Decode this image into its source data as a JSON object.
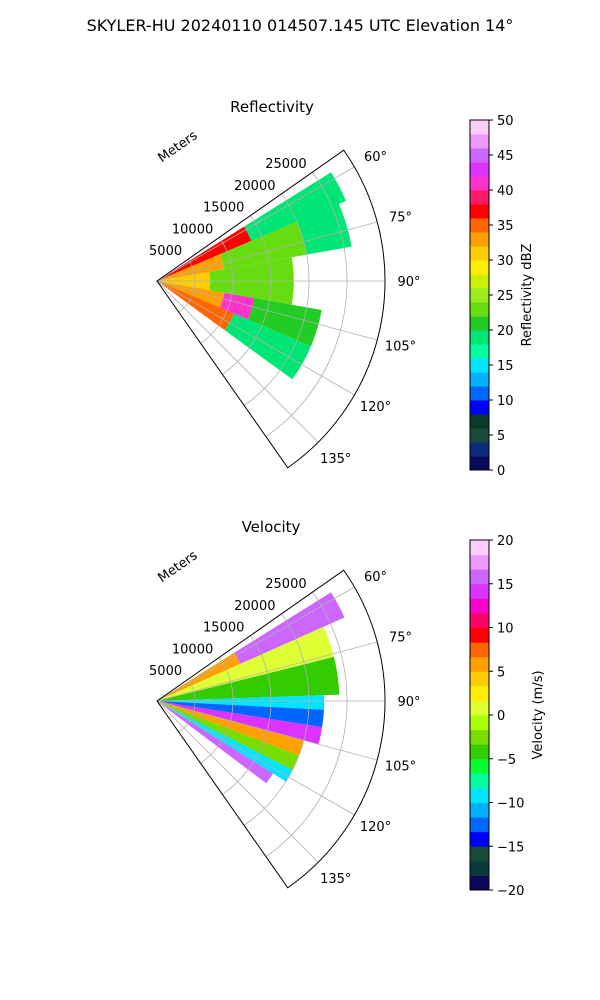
{
  "figure": {
    "suptitle": "SKYLER-HU  20240110  014507.145 UTC Elevation 14°"
  },
  "chart_data": [
    {
      "type": "heatmap",
      "projection": "polar-sector",
      "title": "Reflectivity",
      "radial_label": "Meters",
      "radial_ticks": [
        5000,
        10000,
        15000,
        20000,
        25000
      ],
      "radial_tick_labels": [
        "5000",
        "10000",
        "15000",
        "20000",
        "25000"
      ],
      "rmax": 30000,
      "angle_range_deg": [
        55,
        145
      ],
      "angle_ticks": [
        60,
        75,
        90,
        105,
        120,
        135
      ],
      "angle_tick_labels": [
        "60°",
        "75°",
        "90°",
        "105°",
        "120°",
        "135°"
      ],
      "grid": true,
      "colorbar": {
        "label": "Reflectivity dBZ",
        "range": [
          0,
          50
        ],
        "ticks": [
          0,
          5,
          10,
          15,
          20,
          25,
          30,
          35,
          40,
          45,
          50
        ],
        "tick_labels": [
          "0",
          "5",
          "10",
          "15",
          "20",
          "25",
          "30",
          "35",
          "40",
          "45",
          "50"
        ]
      },
      "sectors": [
        {
          "az": [
            58,
            67
          ],
          "r": [
            0,
            13500
          ],
          "value": 36
        },
        {
          "az": [
            58,
            67
          ],
          "r": [
            13500,
            27000
          ],
          "value": 19
        },
        {
          "az": [
            67,
            80
          ],
          "r": [
            0,
            9000
          ],
          "value": 32
        },
        {
          "az": [
            67,
            80
          ],
          "r": [
            9000,
            20000
          ],
          "value": 22
        },
        {
          "az": [
            67,
            80
          ],
          "r": [
            20000,
            26000
          ],
          "value": 18
        },
        {
          "az": [
            80,
            100
          ],
          "r": [
            0,
            7000
          ],
          "value": 30
        },
        {
          "az": [
            80,
            100
          ],
          "r": [
            7000,
            18000
          ],
          "value": 22
        },
        {
          "az": [
            100,
            113
          ],
          "r": [
            0,
            9000
          ],
          "value": 33
        },
        {
          "az": [
            100,
            113
          ],
          "r": [
            9000,
            13000
          ],
          "value": 40
        },
        {
          "az": [
            100,
            113
          ],
          "r": [
            13000,
            22000
          ],
          "value": 20
        },
        {
          "az": [
            113,
            126
          ],
          "r": [
            0,
            11000
          ],
          "value": 34
        },
        {
          "az": [
            113,
            126
          ],
          "r": [
            11000,
            22000
          ],
          "value": 19
        }
      ]
    },
    {
      "type": "heatmap",
      "projection": "polar-sector",
      "title": "Velocity",
      "radial_label": "Meters",
      "radial_ticks": [
        5000,
        10000,
        15000,
        20000,
        25000
      ],
      "radial_tick_labels": [
        "5000",
        "10000",
        "15000",
        "20000",
        "25000"
      ],
      "rmax": 30000,
      "angle_range_deg": [
        55,
        145
      ],
      "angle_ticks": [
        60,
        75,
        90,
        105,
        120,
        135
      ],
      "angle_tick_labels": [
        "60°",
        "75°",
        "90°",
        "105°",
        "120°",
        "135°"
      ],
      "grid": true,
      "colorbar": {
        "label": "Velocity (m/s)",
        "range": [
          -20,
          20
        ],
        "ticks": [
          -20,
          -15,
          -10,
          -5,
          0,
          5,
          10,
          15,
          20
        ],
        "tick_labels": [
          "−20",
          "−15",
          "−10",
          "−5",
          "0",
          "5",
          "10",
          "15",
          "20"
        ]
      },
      "sectors": [
        {
          "az": [
            58,
            66
          ],
          "r": [
            0,
            12000
          ],
          "value": 6
        },
        {
          "az": [
            58,
            66
          ],
          "r": [
            12000,
            27000
          ],
          "value": 15
        },
        {
          "az": [
            66,
            76
          ],
          "r": [
            0,
            24000
          ],
          "value": 1
        },
        {
          "az": [
            76,
            88
          ],
          "r": [
            0,
            24000
          ],
          "value": -4
        },
        {
          "az": [
            88,
            93
          ],
          "r": [
            0,
            22000
          ],
          "value": -9
        },
        {
          "az": [
            93,
            99
          ],
          "r": [
            0,
            22000
          ],
          "value": -13
        },
        {
          "az": [
            99,
            105
          ],
          "r": [
            0,
            22000
          ],
          "value": 14
        },
        {
          "az": [
            105,
            111
          ],
          "r": [
            0,
            20000
          ],
          "value": 6
        },
        {
          "az": [
            111,
            117
          ],
          "r": [
            0,
            20000
          ],
          "value": -2
        },
        {
          "az": [
            117,
            122
          ],
          "r": [
            0,
            20000
          ],
          "value": -9
        },
        {
          "az": [
            122,
            127
          ],
          "r": [
            0,
            18000
          ],
          "value": 15
        }
      ]
    }
  ],
  "colormaps": {
    "reflectivity": [
      "#0a0a5a",
      "#0d2a7a",
      "#1a4a3a",
      "#0b3a2a",
      "#0000ff",
      "#0066ff",
      "#00b0ff",
      "#00e5ff",
      "#00ffa0",
      "#00e676",
      "#22cc22",
      "#66dd11",
      "#99ee22",
      "#ccf000",
      "#ffee00",
      "#ffcc00",
      "#ffa000",
      "#ff6600",
      "#ff0000",
      "#ff1a66",
      "#ff33cc",
      "#dd33ff",
      "#cc66ff",
      "#ee99ff",
      "#ffccff"
    ],
    "velocity": [
      "#0a0a5a",
      "#0a3a3a",
      "#1a4a3a",
      "#0000ff",
      "#0066ff",
      "#00b0ff",
      "#00e5ff",
      "#00ffa0",
      "#00ff33",
      "#33cc00",
      "#77dd00",
      "#aaff00",
      "#ddff33",
      "#ffee00",
      "#ffcc00",
      "#ffa000",
      "#ff6600",
      "#ff0000",
      "#ff0066",
      "#ff00cc",
      "#dd33ff",
      "#cc66ff",
      "#ee99ff",
      "#ffccff"
    ]
  }
}
